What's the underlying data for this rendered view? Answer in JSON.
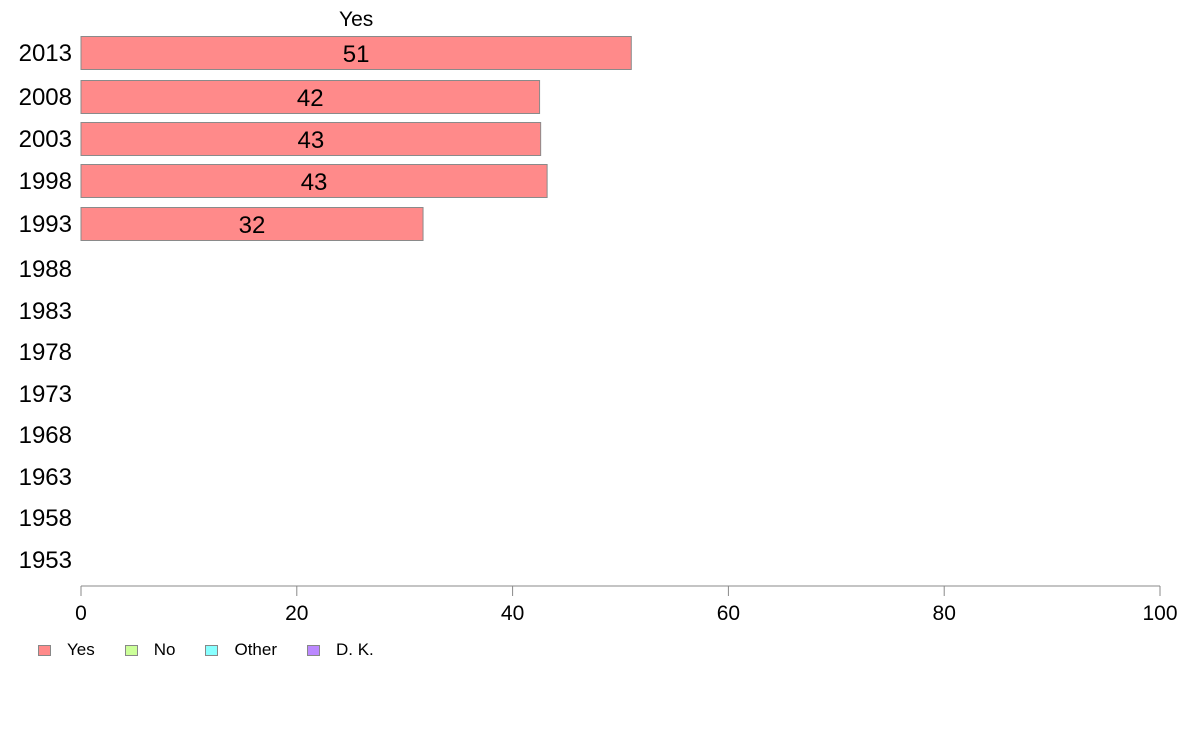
{
  "chart_data": {
    "type": "bar",
    "orientation": "horizontal",
    "stacked": true,
    "categories": [
      "2013",
      "2008",
      "2003",
      "1998",
      "1993",
      "1988",
      "1983",
      "1978",
      "1973",
      "1968",
      "1963",
      "1958",
      "1953"
    ],
    "series": [
      {
        "name": "Yes",
        "color": "#ff8a8a",
        "values": [
          51,
          42.5,
          42.6,
          43.2,
          31.7,
          null,
          null,
          null,
          null,
          null,
          null,
          null,
          null
        ],
        "labels": [
          "51",
          "42",
          "43",
          "43",
          "32",
          "",
          "",
          "",
          "",
          "",
          "",
          "",
          ""
        ]
      },
      {
        "name": "No",
        "color": "#ccff99",
        "values": [
          null,
          null,
          null,
          null,
          null,
          null,
          null,
          null,
          null,
          null,
          null,
          null,
          null
        ]
      },
      {
        "name": "Other",
        "color": "#88ffff",
        "values": [
          null,
          null,
          null,
          null,
          null,
          null,
          null,
          null,
          null,
          null,
          null,
          null,
          null
        ]
      },
      {
        "name": "D. K.",
        "color": "#bb88ff",
        "values": [
          null,
          null,
          null,
          null,
          null,
          null,
          null,
          null,
          null,
          null,
          null,
          null,
          null
        ]
      }
    ],
    "top_label": "Yes",
    "xlim": [
      0,
      100
    ],
    "xticks": [
      "0",
      "20",
      "40",
      "60",
      "80",
      "100"
    ],
    "legend_position": "bottom-left",
    "grid": false
  }
}
